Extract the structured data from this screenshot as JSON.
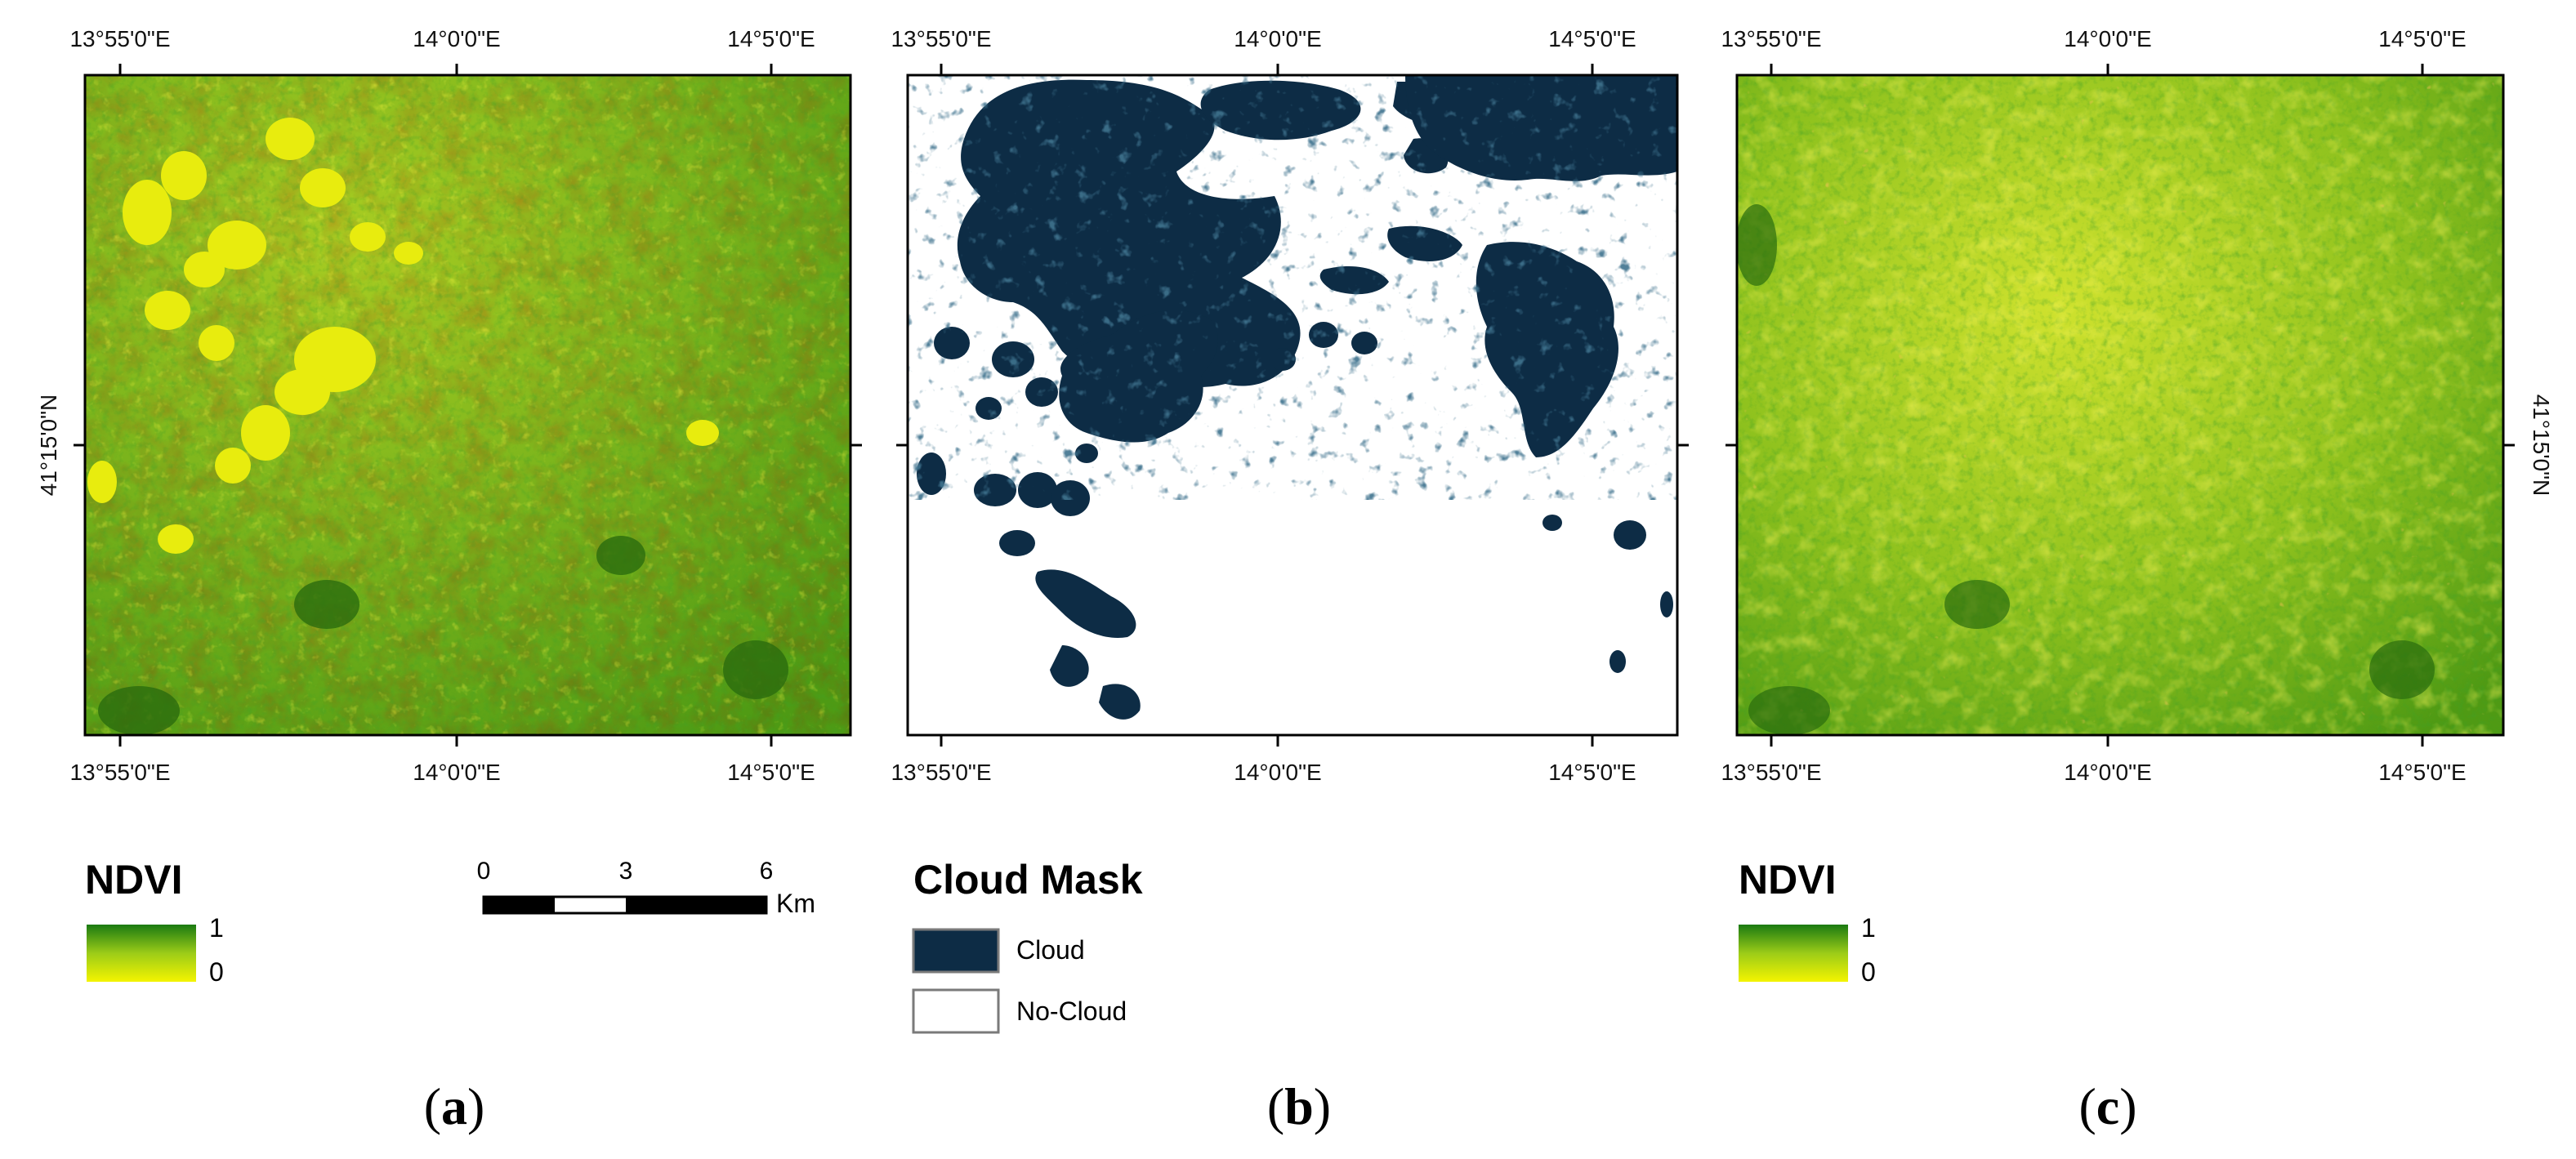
{
  "panels": [
    {
      "id": "a",
      "label": "a",
      "coords_top": [
        "13°55'0\"E",
        "14°0'0\"E",
        "14°5'0\"E"
      ],
      "coords_bottom": [
        "13°55'0\"E",
        "14°0'0\"E",
        "14°5'0\"E"
      ],
      "lat_label": "41°15'0\"N",
      "legend": {
        "title": "NDVI",
        "max": "1",
        "min": "0"
      }
    },
    {
      "id": "b",
      "label": "b",
      "coords_top": [
        "13°55'0\"E",
        "14°0'0\"E",
        "14°5'0\"E"
      ],
      "coords_bottom": [
        "13°55'0\"E",
        "14°0'0\"E",
        "14°5'0\"E"
      ],
      "legend": {
        "title": "Cloud Mask",
        "items": [
          {
            "label": "Cloud",
            "color": "#0d2c45"
          },
          {
            "label": "No-Cloud",
            "color": "#ffffff"
          }
        ]
      }
    },
    {
      "id": "c",
      "label": "c",
      "coords_top": [
        "13°55'0\"E",
        "14°0'0\"E",
        "14°5'0\"E"
      ],
      "coords_bottom": [
        "13°55'0\"E",
        "14°0'0\"E",
        "14°5'0\"E"
      ],
      "lat_label": "41°15'0\"N",
      "legend": {
        "title": "NDVI",
        "max": "1",
        "min": "0"
      }
    }
  ],
  "scale_bar": {
    "ticks": [
      "0",
      "3",
      "6"
    ],
    "unit": "Km"
  },
  "colors": {
    "ndvi_high": "#1a7a12",
    "ndvi_mid": "#79b81a",
    "ndvi_low": "#f4f400",
    "ndvi_stress": "#e8a020",
    "cloud": "#0d2c45",
    "no_cloud": "#ffffff"
  }
}
